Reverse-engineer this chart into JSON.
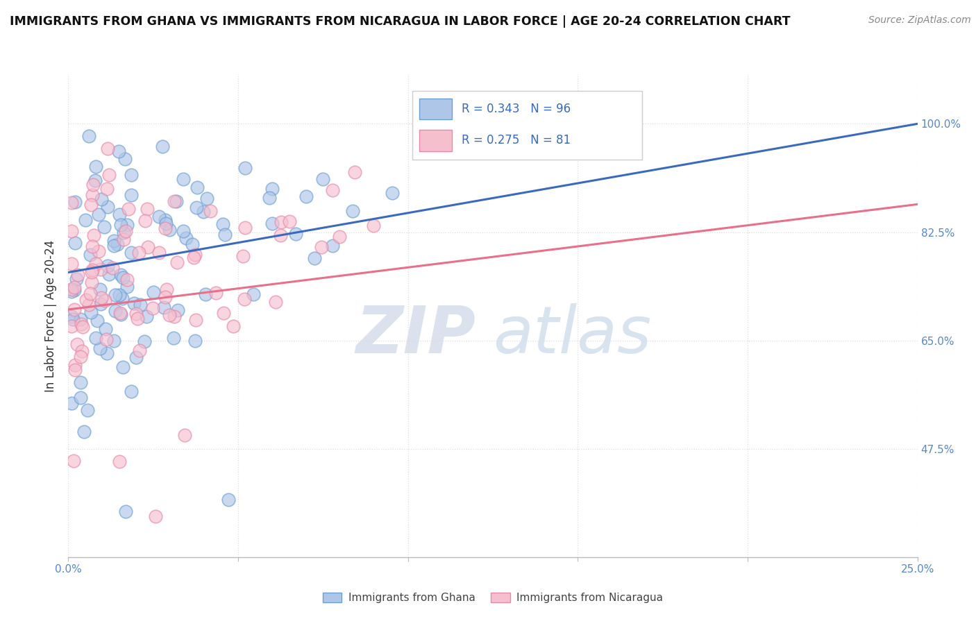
{
  "title": "IMMIGRANTS FROM GHANA VS IMMIGRANTS FROM NICARAGUA IN LABOR FORCE | AGE 20-24 CORRELATION CHART",
  "source": "Source: ZipAtlas.com",
  "ylabel": "In Labor Force | Age 20-24",
  "xlim": [
    0.0,
    0.25
  ],
  "ylim": [
    0.3,
    1.08
  ],
  "xtick_labels_show": [
    "0.0%",
    "25.0%"
  ],
  "yticks_right": [
    1.0,
    0.825,
    0.65,
    0.475
  ],
  "ytick_right_labels": [
    "100.0%",
    "82.5%",
    "65.0%",
    "47.5%"
  ],
  "ghana_color": "#aec6e8",
  "nicaragua_color": "#f5bfce",
  "ghana_edge": "#6aa0d4",
  "nicaragua_edge": "#e888aa",
  "trend_ghana_color": "#3a6abf",
  "trend_nicaragua_color": "#e8708a",
  "R_ghana": 0.343,
  "N_ghana": 96,
  "R_nicaragua": 0.275,
  "N_nicaragua": 81,
  "watermark_zip": "ZIP",
  "watermark_atlas": "atlas",
  "legend_ghana": "Immigrants from Ghana",
  "legend_nicaragua": "Immigrants from Nicaragua",
  "grid_color": "#dddddd",
  "axis_color": "#bbbbbb",
  "tick_color": "#5588cc",
  "title_fontsize": 12.5,
  "source_fontsize": 10,
  "tick_fontsize": 11,
  "ylabel_fontsize": 12,
  "marker_size": 180,
  "marker_alpha": 0.65,
  "marker_lw": 1.2,
  "trend_lw": 2.2
}
